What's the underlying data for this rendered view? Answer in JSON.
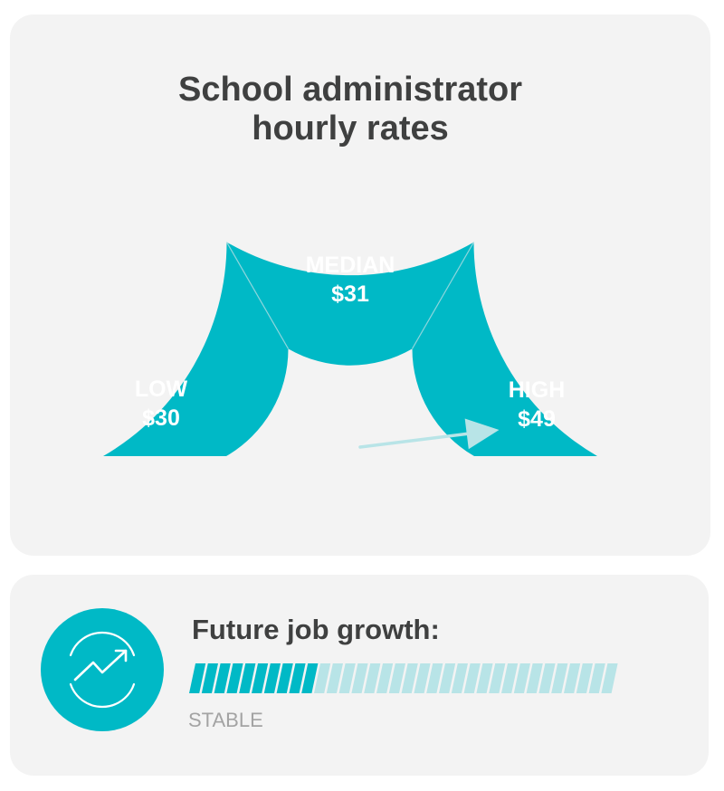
{
  "gauge": {
    "title_line_1": "School administrator",
    "title_line_2": "hourly rates",
    "segments": [
      {
        "name": "LOW",
        "value": "$30"
      },
      {
        "name": "MEDIAN",
        "value": "$31"
      },
      {
        "name": "HIGH",
        "value": "$49"
      }
    ],
    "needle_segment": "HIGH",
    "colors": {
      "segment": "#00b9c6",
      "divider": "#8ed6dd",
      "needle": "#b8e4e7",
      "card_bg": "#f3f3f3"
    }
  },
  "growth": {
    "title": "Future job growth:",
    "status": "STABLE",
    "level": 0.3,
    "icon": "trend-up-icon",
    "colors": {
      "filled": "#00b9c6",
      "empty": "#b8e4e7",
      "status_text": "#a3a3a3"
    }
  }
}
